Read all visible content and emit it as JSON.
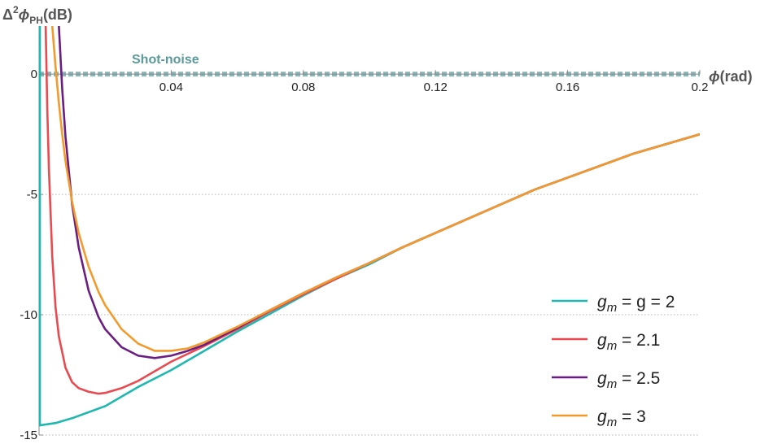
{
  "chart_data": {
    "type": "line",
    "xlabel_symbol": "ϕ",
    "xlabel_unit": "(rad)",
    "ylabel_prefix": "Δ",
    "ylabel_sup": "2",
    "ylabel_symbol": "ϕ",
    "ylabel_sub": "PH",
    "ylabel_unit": "(dB)",
    "xlim": [
      0,
      0.2
    ],
    "ylim": [
      -15,
      2
    ],
    "x_ticks": [
      0.04,
      0.08,
      0.12,
      0.16,
      0.2
    ],
    "x_tick_labels": [
      "0.04",
      "0.08",
      "0.12",
      "0.16",
      "0.2"
    ],
    "y_ticks": [
      0,
      -5,
      -10,
      -15
    ],
    "y_tick_labels": [
      "0",
      "-5",
      "-10",
      "-15"
    ],
    "grid": "horizontal dotted at y ticks",
    "legend_placement": "bottom-right",
    "annotation": {
      "text": "Shot-noise",
      "y": 0,
      "color": "#5b9a9a"
    },
    "series": [
      {
        "name": "g_m = g = 2",
        "legend": {
          "g": "g",
          "sub": "m",
          "rest": " = g = 2"
        },
        "color": "#1fb8b0",
        "x": [
          0.0,
          0.005,
          0.01,
          0.02,
          0.03,
          0.04,
          0.05,
          0.06,
          0.07,
          0.08,
          0.09,
          0.1,
          0.11,
          0.12,
          0.13,
          0.14,
          0.15,
          0.16,
          0.17,
          0.18,
          0.19,
          0.2
        ],
        "y": [
          -14.6,
          -14.5,
          -14.3,
          -13.8,
          -13.0,
          -12.3,
          -11.5,
          -10.7,
          -9.95,
          -9.2,
          -8.5,
          -7.9,
          -7.2,
          -6.6,
          -6.0,
          -5.4,
          -4.8,
          -4.3,
          -3.8,
          -3.3,
          -2.9,
          -2.5
        ]
      },
      {
        "name": "g_m = 2.1",
        "legend": {
          "g": "g",
          "sub": "m",
          "rest": " = 2.1"
        },
        "color": "#e84a50",
        "x": [
          0.002,
          0.0025,
          0.003,
          0.004,
          0.005,
          0.006,
          0.008,
          0.01,
          0.012,
          0.015,
          0.018,
          0.02,
          0.025,
          0.03,
          0.04,
          0.05,
          0.06,
          0.07,
          0.08,
          0.09,
          0.1,
          0.11,
          0.12,
          0.13,
          0.14,
          0.15,
          0.16,
          0.17,
          0.18,
          0.19,
          0.2
        ],
        "y": [
          2.0,
          -1.5,
          -4.0,
          -7.6,
          -9.7,
          -10.9,
          -12.2,
          -12.8,
          -13.05,
          -13.2,
          -13.28,
          -13.25,
          -13.05,
          -12.75,
          -11.95,
          -11.3,
          -10.6,
          -9.85,
          -9.15,
          -8.5,
          -7.85,
          -7.2,
          -6.6,
          -6.0,
          -5.4,
          -4.8,
          -4.3,
          -3.8,
          -3.3,
          -2.9,
          -2.5
        ]
      },
      {
        "name": "g_m = 2.5",
        "legend": {
          "g": "g",
          "sub": "m",
          "rest": " = 2.5"
        },
        "color": "#6b1e82",
        "x": [
          0.006,
          0.007,
          0.008,
          0.01,
          0.012,
          0.015,
          0.018,
          0.02,
          0.025,
          0.03,
          0.035,
          0.04,
          0.045,
          0.05,
          0.06,
          0.07,
          0.08,
          0.09,
          0.1,
          0.11,
          0.12,
          0.13,
          0.14,
          0.15,
          0.16,
          0.17,
          0.18,
          0.19,
          0.2
        ],
        "y": [
          2.0,
          -0.6,
          -2.6,
          -5.4,
          -7.2,
          -9.0,
          -10.1,
          -10.6,
          -11.35,
          -11.7,
          -11.8,
          -11.7,
          -11.5,
          -11.25,
          -10.55,
          -9.8,
          -9.1,
          -8.45,
          -7.85,
          -7.2,
          -6.6,
          -6.0,
          -5.4,
          -4.8,
          -4.3,
          -3.8,
          -3.3,
          -2.9,
          -2.5
        ]
      },
      {
        "name": "g_m = 3",
        "legend": {
          "g": "g",
          "sub": "m",
          "rest": " = 3"
        },
        "color": "#f39a2b",
        "x": [
          0.004,
          0.005,
          0.006,
          0.007,
          0.008,
          0.01,
          0.012,
          0.015,
          0.018,
          0.02,
          0.025,
          0.03,
          0.035,
          0.04,
          0.045,
          0.05,
          0.06,
          0.07,
          0.08,
          0.09,
          0.1,
          0.11,
          0.12,
          0.13,
          0.14,
          0.15,
          0.16,
          0.17,
          0.18,
          0.19,
          0.2
        ],
        "y": [
          2.0,
          0.3,
          -1.2,
          -2.5,
          -3.6,
          -5.3,
          -6.6,
          -8.0,
          -9.05,
          -9.6,
          -10.6,
          -11.2,
          -11.5,
          -11.5,
          -11.4,
          -11.15,
          -10.5,
          -9.8,
          -9.1,
          -8.45,
          -7.85,
          -7.2,
          -6.6,
          -6.0,
          -5.4,
          -4.8,
          -4.3,
          -3.8,
          -3.3,
          -2.9,
          -2.5
        ]
      }
    ]
  }
}
